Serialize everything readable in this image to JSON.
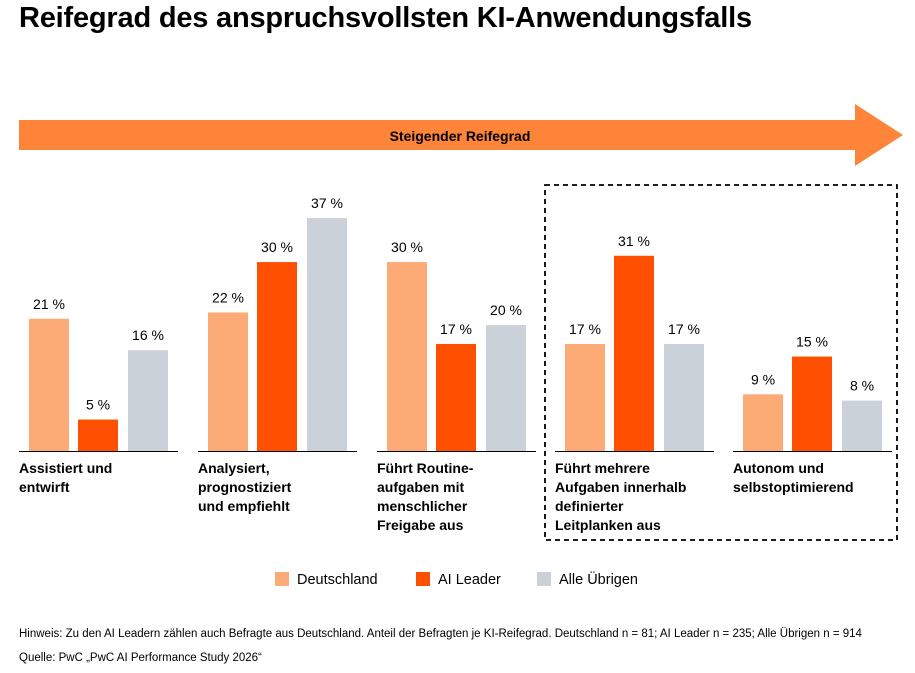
{
  "title": "Reifegrad des anspruchsvollsten KI-Anwendungsfalls",
  "arrow_label": "Steigender Reifegrad",
  "note": "Hinweis: Zu den AI Leadern zählen auch Befragte aus Deutschland. Anteil der Befragten je KI-Reifegrad. Deutschland n = 81; AI Leader n = 235; Alle Übrigen n = 914",
  "source": "Quelle: PwC „PwC AI Performance Study 2026“",
  "colors": {
    "arrow": "#fd8438",
    "Deutschland": "#fdab76",
    "AI Leader": "#fe5000",
    "Alle Übrigen": "#cbd1d8"
  },
  "chart_data": {
    "type": "bar",
    "unit": "%",
    "categories": [
      [
        "Assistiert und",
        "entwirft"
      ],
      [
        "Analysiert,",
        "prognostiziert",
        "und empfiehlt"
      ],
      [
        "Führt Routine-",
        "aufgaben mit",
        "menschlicher",
        "Freigabe aus"
      ],
      [
        "Führt mehrere",
        "Aufgaben innerhalb",
        "definierter",
        "Leitplanken aus"
      ],
      [
        "Autonom und",
        "selbstoptimierend"
      ]
    ],
    "series": [
      {
        "name": "Deutschland",
        "values": [
          21,
          22,
          30,
          17,
          9
        ],
        "labels": [
          "21 %",
          "22 %",
          "30 %",
          "17 %",
          "9 %"
        ]
      },
      {
        "name": "AI Leader",
        "values": [
          5,
          30,
          17,
          31,
          15
        ],
        "labels": [
          "5 %",
          "30 %",
          "17 %",
          "31 %",
          "15 %"
        ]
      },
      {
        "name": "Alle Übrigen",
        "values": [
          16,
          37,
          20,
          17,
          8
        ],
        "labels": [
          "16 %",
          "37 %",
          "20 %",
          "17 %",
          "8 %"
        ]
      }
    ],
    "ylim": [
      0,
      37
    ],
    "highlighted_groups": [
      3,
      4
    ],
    "legend_position": "bottom"
  }
}
